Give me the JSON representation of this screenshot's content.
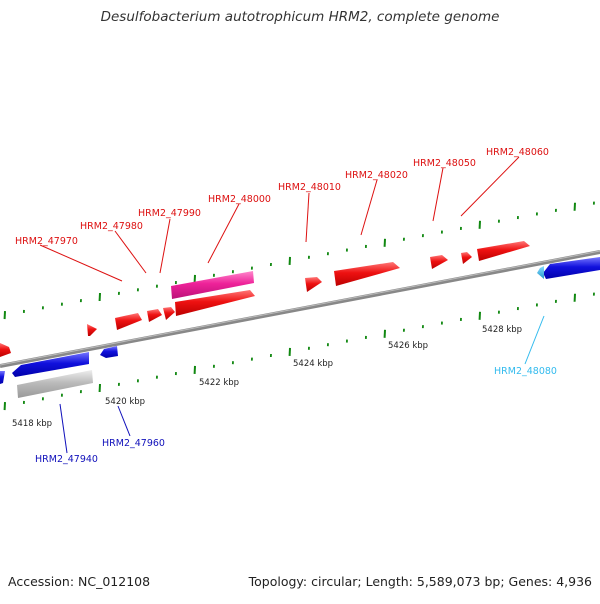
{
  "title": "Desulfobacterium autotrophicum HRM2, complete genome",
  "footer": {
    "accession": "Accession: NC_012108",
    "summary": "Topology: circular; Length: 5,589,073 bp; Genes: 4,936"
  },
  "colors": {
    "forward_gene": "#ee1111",
    "reverse_gene": "#1111dd",
    "rna_gene": "#ee2299",
    "pseudo_gene": "#bbbbbb",
    "highlight_gene": "#33bbee",
    "backbone": "#888888",
    "tick": "#118811"
  },
  "scale_labels": [
    "5418 kbp",
    "5420 kbp",
    "5422 kbp",
    "5424 kbp",
    "5426 kbp",
    "5428 kbp"
  ],
  "gene_labels": {
    "forward": [
      "HRM2_47970",
      "HRM2_47980",
      "HRM2_47990",
      "HRM2_48000",
      "HRM2_48010",
      "HRM2_48020",
      "HRM2_48050",
      "HRM2_48060"
    ],
    "reverse": [
      "HRM2_47940",
      "HRM2_47960"
    ],
    "highlight": [
      "HRM2_48080"
    ]
  }
}
